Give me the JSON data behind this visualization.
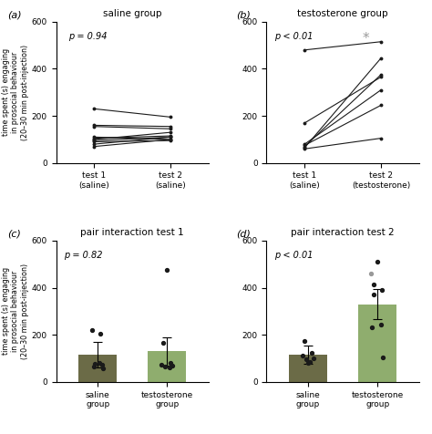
{
  "panel_a_title": "saline group",
  "panel_b_title": "testosterone group",
  "panel_c_title": "pair interaction test 1",
  "panel_d_title": "pair interaction test 2",
  "panel_a_label": "(a)",
  "panel_b_label": "(b)",
  "panel_c_label": "(c)",
  "panel_d_label": "(d)",
  "panel_a_pvalue": "p = 0.94",
  "panel_b_pvalue": "p < 0.01",
  "panel_c_pvalue": "p = 0.82",
  "panel_d_pvalue": "p < 0.01",
  "ylabel": "time spent (s) engaging\nin prosocial behaviour\n(20–30 min post-injection)",
  "panel_a_xticklabels": [
    "test 1\n(saline)",
    "test 2\n(saline)"
  ],
  "panel_b_xticklabels": [
    "test 1\n(saline)",
    "test 2\n(testosterone)"
  ],
  "panel_cd_xticklabels": [
    "saline\ngroup",
    "testosterone\ngroup"
  ],
  "ylim": [
    0,
    600
  ],
  "yticks": [
    0,
    200,
    400,
    600
  ],
  "panel_a_lines": [
    [
      70,
      100
    ],
    [
      80,
      110
    ],
    [
      90,
      95
    ],
    [
      95,
      110
    ],
    [
      100,
      130
    ],
    [
      105,
      115
    ],
    [
      110,
      100
    ],
    [
      155,
      145
    ],
    [
      160,
      155
    ],
    [
      230,
      195
    ]
  ],
  "panel_b_lines": [
    [
      480,
      515
    ],
    [
      170,
      365
    ],
    [
      80,
      310
    ],
    [
      75,
      245
    ],
    [
      70,
      375
    ],
    [
      65,
      445
    ],
    [
      60,
      105
    ]
  ],
  "panel_c_saline_bar": 115,
  "panel_c_saline_err": 55,
  "panel_c_testosterone_bar": 130,
  "panel_c_testosterone_err": 60,
  "panel_c_saline_dots": [
    220,
    205,
    65,
    72,
    78,
    82,
    58
  ],
  "panel_c_testosterone_dots": [
    475,
    165,
    82,
    75,
    70,
    65,
    60
  ],
  "panel_d_saline_bar": 115,
  "panel_d_saline_err": 38,
  "panel_d_testosterone_bar": 330,
  "panel_d_testosterone_err": 65,
  "panel_d_saline_dots": [
    175,
    125,
    110,
    100,
    95,
    85,
    80
  ],
  "panel_d_testosterone_dots": [
    510,
    415,
    390,
    370,
    245,
    230,
    105
  ],
  "panel_d_outlier_dot": 460,
  "bar_color_saline": "#6b6b47",
  "bar_color_testosterone": "#8fad6e",
  "bar_alpha": 1.0,
  "line_color": "#1a1a1a",
  "dot_color": "#1a1a1a",
  "star_color": "#999999",
  "background_color": "#ffffff"
}
